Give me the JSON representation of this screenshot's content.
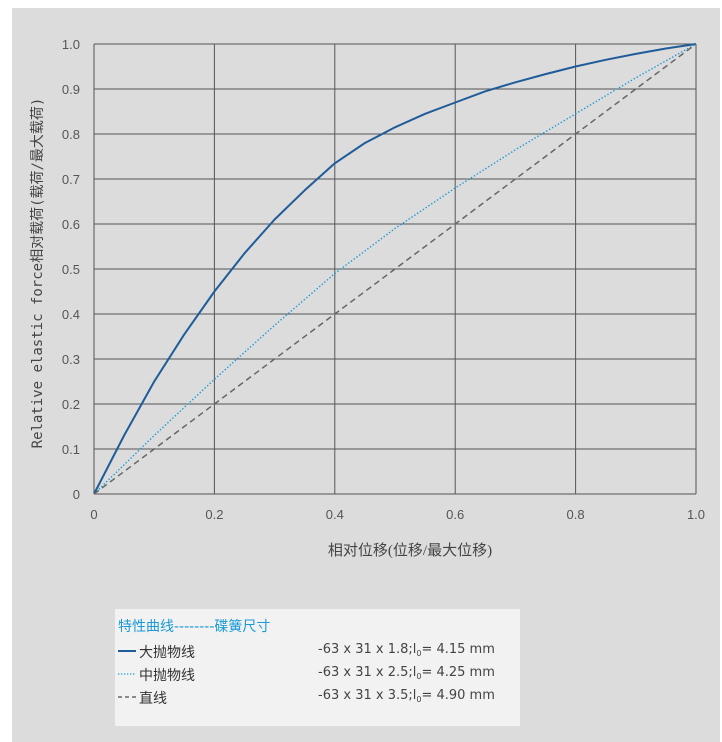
{
  "chart_data": {
    "type": "line",
    "xlabel": "相对位移(位移/最大位移)",
    "ylabel": "Relative elastic force相对载荷(载荷/最大载荷)",
    "xlim": [
      0,
      1.0
    ],
    "ylim": [
      0,
      1.0
    ],
    "x_ticks": [
      "0",
      "0.2",
      "0.4",
      "0.6",
      "0.8",
      "1.0"
    ],
    "y_ticks": [
      "0",
      "0.1",
      "0.2",
      "0.3",
      "0.4",
      "0.5",
      "0.6",
      "0.7",
      "0.8",
      "0.9",
      "1.0"
    ],
    "grid": true,
    "series": [
      {
        "name": "大抛物线",
        "style": "solid",
        "color": "#1f5c99",
        "x": [
          0,
          0.05,
          0.1,
          0.15,
          0.2,
          0.25,
          0.3,
          0.35,
          0.4,
          0.45,
          0.5,
          0.55,
          0.6,
          0.65,
          0.7,
          0.75,
          0.8,
          0.85,
          0.9,
          0.95,
          1.0
        ],
        "y": [
          0,
          0.13,
          0.25,
          0.355,
          0.45,
          0.535,
          0.61,
          0.675,
          0.735,
          0.78,
          0.815,
          0.845,
          0.87,
          0.895,
          0.915,
          0.933,
          0.95,
          0.965,
          0.978,
          0.99,
          1.0
        ]
      },
      {
        "name": "中抛物线",
        "style": "dotted",
        "color": "#1a9ad6",
        "x": [
          0,
          0.1,
          0.2,
          0.3,
          0.4,
          0.5,
          0.6,
          0.7,
          0.8,
          0.9,
          1.0
        ],
        "y": [
          0,
          0.13,
          0.255,
          0.375,
          0.49,
          0.59,
          0.68,
          0.765,
          0.845,
          0.925,
          1.0
        ]
      },
      {
        "name": "直线",
        "style": "dashed",
        "color": "#666666",
        "x": [
          0,
          1.0
        ],
        "y": [
          0,
          1.0
        ]
      }
    ]
  },
  "legend": {
    "title": "特性曲线--------碟簧尺寸",
    "items": [
      {
        "symbol": "solid",
        "color": "#1f5c99",
        "label": "大抛物线",
        "spec_main": "-63 x 31 x 1.8;l",
        "spec_sub": "0",
        "spec_tail": "= 4.15 mm"
      },
      {
        "symbol": "dotted",
        "color": "#1a9ad6",
        "label": "中抛物线",
        "spec_main": "-63 x 31 x 2.5;l",
        "spec_sub": "0",
        "spec_tail": "= 4.25 mm"
      },
      {
        "symbol": "dashed",
        "color": "#666666",
        "label": "直线",
        "spec_main": "-63 x 31 x 3.5;l",
        "spec_sub": "0",
        "spec_tail": "= 4.90 mm"
      }
    ]
  },
  "colors": {
    "background": "#dcdcdc",
    "plot_area": "#dcdcdc",
    "grid": "#555555",
    "legend_bg": "#f2f2f2",
    "accent": "#1a9ad6"
  }
}
